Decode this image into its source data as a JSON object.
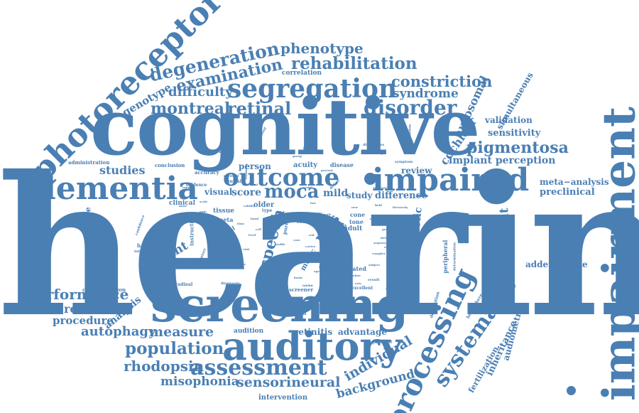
{
  "color": "#4a7fb3",
  "words": {
    "hearing": "hearing",
    "cognitive": "cognitive",
    "impairment": "impairment",
    "screening": "screening",
    "photoreceptor": "photoreceptor",
    "auditory": "auditory",
    "dementia": "dementia",
    "impaired": "impaired",
    "outcome": "outcome",
    "segregation": "segregation",
    "processing": "processing",
    "systematic": "systematic",
    "assessment": "assessment",
    "degeneration": "degeneration",
    "examination": "examination",
    "rehabilitation": "rehabilitation",
    "phenotype": "phenotype",
    "disorder": "disorder",
    "montreal": "montreal",
    "retinal": "retinal",
    "moca": "moca",
    "population": "population",
    "pigmentosa": "pigmentosa",
    "constriction": "constriction",
    "syndrome": "syndrome",
    "difficulty": "difficulty",
    "genotype": "genotype",
    "studies": "studies",
    "performance": "performance",
    "measure": "measure",
    "autophagy": "autophagy",
    "rhodopsin": "rhodopsin",
    "misophonia": "misophonia",
    "sensorineural": "sensorineural",
    "background": "background",
    "individual": "individual",
    "speech": "speech",
    "stroke": "stroke",
    "loss": "loss",
    "patient": "patient",
    "treatment": "treatment",
    "lysosome": "lysosome",
    "dichotic": "dichotic",
    "recessive": "recessive",
    "procedure": "procedure",
    "analysis": "analysis",
    "questionnaire": "questionnaire",
    "autosomal": "autosomal",
    "cochlear": "cochlear",
    "simultaneous": "simultaneous",
    "validation": "validation",
    "sensitivity": "sensitivity",
    "implant_perception": "implant perception",
    "meta_analysis": "meta−analysis",
    "preclinical": "preclinical",
    "addenbrooke": "addenbrooke",
    "audiometry": "audiometry",
    "inheritance": "inheritance",
    "fertilization": "fertilization",
    "retinitis": "retinitis",
    "advantage": "advantage",
    "audition": "audition",
    "intervention": "intervention",
    "score": "score",
    "visual": "visual",
    "person": "person",
    "acuity": "acuity",
    "mild": "mild",
    "study": "study",
    "review": "review",
    "difference": "difference",
    "correlation": "correlation",
    "clinical": "clinical",
    "tissue": "tissue",
    "meta": "meta",
    "handheld": "handheld",
    "communication": "communication",
    "longitudinal": "longitudinal",
    "adaption": "adaption",
    "music": "music",
    "usher": "usher",
    "metric": "metric",
    "screener": "screener",
    "excellent": "excellent",
    "significant": "significant",
    "older": "older",
    "cone": "cone",
    "tone": "tone",
    "adult": "adult",
    "related": "related",
    "peripheral": "peripheral",
    "hemisphere": "hemisphere",
    "description": "description",
    "administration": "administration",
    "conclusion": "conclusion",
    "evidence": "evidence",
    "accuracy": "accuracy",
    "problem": "problem",
    "disease": "disease",
    "digit": "digit",
    "instruction": "instruction",
    "control": "control",
    "information": "information",
    "diagnosis": "diagnosis",
    "additional": "additional",
    "specificity": "specificity",
    "preliminary": "preliminary",
    "development": "development",
    "following": "following",
    "difficulties": "difficulties",
    "symptom": "symptom",
    "participant": "participant",
    "mislocalisation": "mislocalisation",
    "research": "research",
    "potential": "potential",
    "standard": "standard",
    "determination": "determination",
    "normal": "normal",
    "deficit": "deficit",
    "central": "central",
    "method": "method",
    "abnormal": "abnormal",
    "ability": "ability",
    "damage": "damage",
    "effect": "effect",
    "result": "result",
    "pure": "pure",
    "test": "test",
    "type": "type",
    "confidence": "confidence",
    "inventory": "inventory",
    "indicated": "indicated",
    "survival": "survival",
    "isolate": "isolate",
    "record": "record",
    "group": "group",
    "present": "present",
    "presence": "presence",
    "feasibility": "feasibility",
    "more": "more",
    "rapid": "rapid",
    "hierarchy": "hierarchy",
    "new": "new",
    "field": "field",
    "profile": "profile",
    "low": "low",
    "single": "single",
    "validity": "validity",
    "inhibit": "inhibit",
    "mutation": "mutation",
    "sequence": "sequence",
    "complex": "complex",
    "subject": "subject",
    "signal": "signal",
    "word": "word",
    "case": "case",
    "brain": "brain",
    "time": "time",
    "age": "age",
    "noise": "noise",
    "level": "level",
    "function": "function",
    "variant": "variant",
    "factor": "factor",
    "cortex": "cortex",
    "visit": "visit",
    "gene": "gene",
    "model": "model",
    "scale": "scale",
    "gain": "gain",
    "rate": "rate",
    "pitch": "pitch",
    "delay": "delay",
    "band": "band",
    "cell": "cell",
    "rod": "rod",
    "aid": "aid"
  }
}
